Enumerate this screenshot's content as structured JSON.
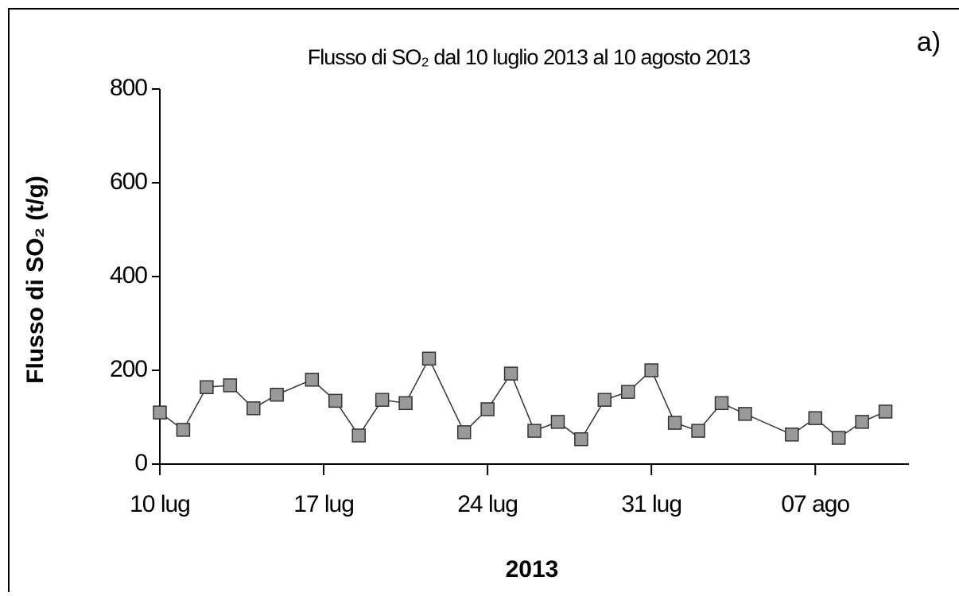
{
  "chart_data": {
    "type": "line",
    "title": "Flusso di SO₂ dal 10 luglio 2013 al 10 agosto 2013",
    "annotation": "a)",
    "x_label": "2013",
    "y_label": "Flusso di SO₂ (t/g)",
    "x": [
      0,
      1,
      2,
      3,
      4,
      5,
      6.5,
      7.5,
      8.5,
      9.5,
      10.5,
      11.5,
      13,
      14,
      15,
      16,
      17,
      18,
      19,
      20,
      21,
      22,
      23,
      24,
      25,
      27,
      28,
      29,
      30,
      31
    ],
    "series": [
      {
        "name": "Flusso di SO₂",
        "color": "#999999",
        "values": [
          110,
          73,
          164,
          168,
          119,
          148,
          180,
          135,
          61,
          137,
          130,
          225,
          68,
          117,
          193,
          71,
          90,
          53,
          137,
          154,
          200,
          88,
          71,
          130,
          107,
          63,
          98,
          56,
          90,
          112
        ]
      }
    ],
    "xlim": [
      0,
      32
    ],
    "xticks": [
      {
        "value": 0,
        "label": "10 lug"
      },
      {
        "value": 7,
        "label": "17 lug"
      },
      {
        "value": 14,
        "label": "24 lug"
      },
      {
        "value": 21,
        "label": "31 lug"
      },
      {
        "value": 28,
        "label": "07 ago"
      }
    ],
    "ylim": [
      0,
      800
    ],
    "yticks": [
      0,
      200,
      400,
      600,
      800
    ]
  }
}
